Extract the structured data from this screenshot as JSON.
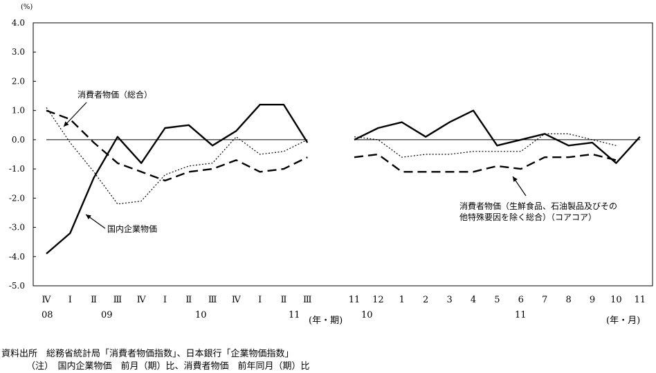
{
  "chart_data": {
    "type": "line",
    "y_unit": "(%)",
    "ylim": [
      -5.0,
      4.0
    ],
    "y_ticks": [
      "4.0",
      "3.0",
      "2.0",
      "1.0",
      "0.0",
      "-1.0",
      "-2.0",
      "-3.0",
      "-4.0",
      "-5.0"
    ],
    "panels": [
      {
        "x_labels": [
          "Ⅳ",
          "Ⅰ",
          "Ⅱ",
          "Ⅲ",
          "Ⅳ",
          "Ⅰ",
          "Ⅱ",
          "Ⅲ",
          "Ⅳ",
          "Ⅰ",
          "Ⅱ",
          "Ⅲ"
        ],
        "year_labels": [
          "08",
          "09",
          "10",
          "11"
        ],
        "x_axis_unit": "(年・期)",
        "series": [
          {
            "key": "cpi_total",
            "style": "dotted",
            "values": [
              1.1,
              -0.1,
              -1.1,
              -2.2,
              -2.1,
              -1.2,
              -0.9,
              -0.8,
              0.1,
              -0.5,
              -0.4,
              0.0
            ]
          },
          {
            "key": "cgpi",
            "style": "solid",
            "values": [
              -3.9,
              -3.2,
              -1.3,
              0.1,
              -0.8,
              0.4,
              0.5,
              -0.2,
              0.3,
              1.2,
              1.2,
              -0.1
            ]
          },
          {
            "key": "core_core",
            "style": "dashed",
            "values": [
              1.0,
              0.7,
              -0.1,
              -0.8,
              -1.1,
              -1.4,
              -1.1,
              -1.0,
              -0.7,
              -1.1,
              -1.0,
              -0.6
            ]
          }
        ]
      },
      {
        "x_labels": [
          "11",
          "12",
          "1",
          "2",
          "3",
          "4",
          "5",
          "6",
          "7",
          "8",
          "9",
          "10",
          "11"
        ],
        "year_labels": [
          "10",
          "11"
        ],
        "x_axis_unit": "(年・月)",
        "series": [
          {
            "key": "cpi_total",
            "style": "dotted",
            "values": [
              0.1,
              0.0,
              -0.6,
              -0.5,
              -0.5,
              -0.4,
              -0.4,
              -0.4,
              0.2,
              0.2,
              0.0,
              -0.2,
              null
            ]
          },
          {
            "key": "cgpi",
            "style": "solid",
            "values": [
              0.0,
              0.4,
              0.6,
              0.1,
              0.6,
              1.0,
              -0.2,
              0.0,
              0.2,
              -0.2,
              -0.1,
              -0.8,
              0.1
            ]
          },
          {
            "key": "core_core",
            "style": "dashed",
            "values": [
              -0.6,
              -0.5,
              -1.1,
              -1.1,
              -1.1,
              -1.1,
              -0.9,
              -1.0,
              -0.6,
              -0.6,
              -0.5,
              -0.7,
              null
            ]
          }
        ]
      }
    ],
    "annotations": {
      "cpi_total": "消費者物価（総合）",
      "cgpi": "国内企業物価",
      "core_core_line1": "消費者物価（生鮮食品、石油製品及びその",
      "core_core_line2": "他特殊要因を除く総合）（コアコア）"
    }
  },
  "footer": {
    "source": "資料出所　総務省統計局「消費者物価指数」、日本銀行「企業物価指数」",
    "note": "（注）　国内企業物価　前月（期）比、消費者物価　前年同月（期）比"
  }
}
